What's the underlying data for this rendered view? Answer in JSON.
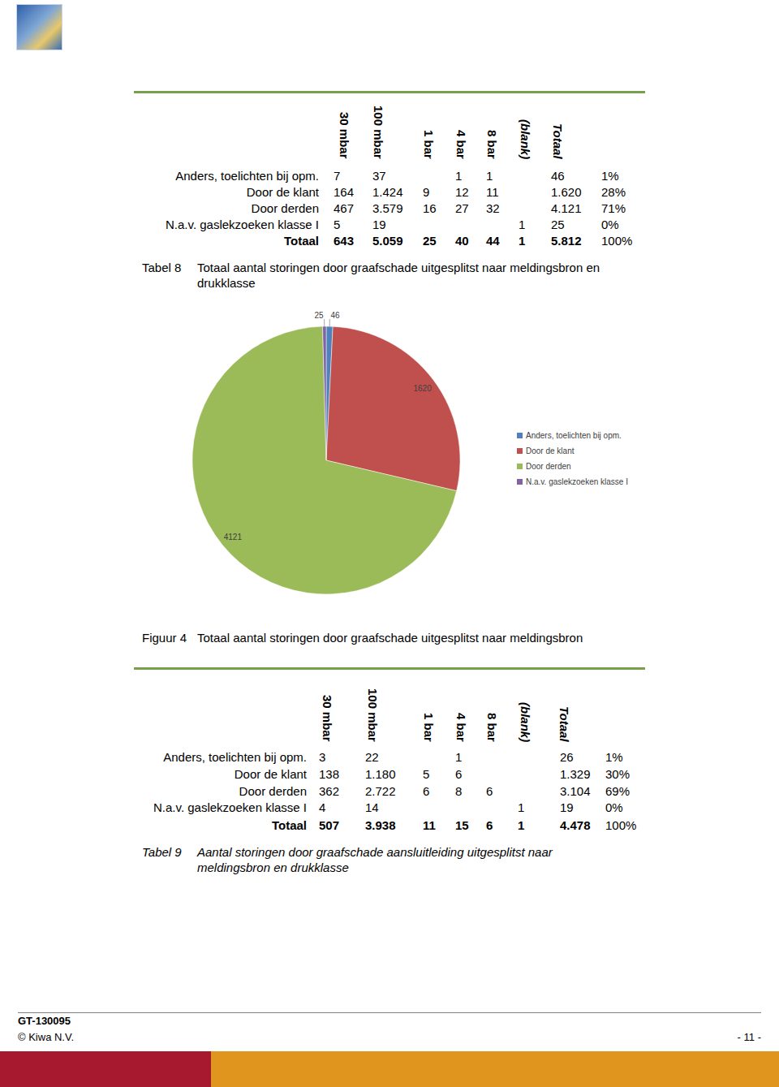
{
  "table1": {
    "columns": [
      "30 mbar",
      "100 mbar",
      "1 bar",
      "4 bar",
      "8 bar",
      "(blank)",
      "Totaal"
    ],
    "rows": [
      {
        "label": "Anders, toelichten bij opm.",
        "cells": [
          "7",
          "37",
          null,
          "1",
          "1",
          null,
          "46",
          "1%"
        ]
      },
      {
        "label": "Door de klant",
        "cells": [
          "164",
          "1.424",
          "9",
          "12",
          "11",
          null,
          "1.620",
          "28%"
        ]
      },
      {
        "label": "Door derden",
        "cells": [
          "467",
          "3.579",
          "16",
          "27",
          "32",
          null,
          "4.121",
          "71%"
        ]
      },
      {
        "label": "N.a.v. gaslekzoeken klasse I",
        "cells": [
          "5",
          "19",
          null,
          null,
          null,
          "1",
          "25",
          "0%"
        ]
      },
      {
        "label": "Totaal",
        "cells": [
          "643",
          "5.059",
          "25",
          "40",
          "44",
          "1",
          "5.812",
          "100%"
        ]
      }
    ],
    "caption_label": "Tabel 8",
    "caption": "Totaal aantal storingen door graafschade uitgesplitst naar meldingsbron en drukklasse"
  },
  "chart_data": {
    "type": "pie",
    "categories": [
      "Anders, toelichten bij opm.",
      "Door de klant",
      "Door derden",
      "N.a.v. gaslekzoeken klasse I"
    ],
    "values": [
      46,
      1620,
      4121,
      25
    ],
    "colors": [
      "#4f81bd",
      "#c0504d",
      "#9bbb59",
      "#8064a2"
    ],
    "data_labels": true,
    "legend": "right"
  },
  "figure": {
    "caption_label": "Figuur 4",
    "caption": "Totaal aantal storingen door graafschade uitgesplitst naar meldingsbron"
  },
  "table2": {
    "columns": [
      "30 mbar",
      "100 mbar",
      "1 bar",
      "4 bar",
      "8 bar",
      "(blank)",
      "Totaal"
    ],
    "rows": [
      {
        "label": "Anders, toelichten bij opm.",
        "cells": [
          "3",
          "22",
          null,
          "1",
          null,
          null,
          "26",
          "1%"
        ]
      },
      {
        "label": "Door de klant",
        "cells": [
          "138",
          "1.180",
          "5",
          "6",
          null,
          null,
          "1.329",
          "30%"
        ]
      },
      {
        "label": "Door derden",
        "cells": [
          "362",
          "2.722",
          "6",
          "8",
          "6",
          null,
          "3.104",
          "69%"
        ]
      },
      {
        "label": "N.a.v. gaslekzoeken klasse I",
        "cells": [
          "4",
          "14",
          null,
          null,
          null,
          "1",
          "19",
          "0%"
        ]
      },
      {
        "label": "Totaal",
        "cells": [
          "507",
          "3.938",
          "11",
          "15",
          "6",
          "1",
          "4.478",
          "100%"
        ]
      }
    ],
    "caption_label": "Tabel 9",
    "caption": "Aantal storingen door graafschade aansluitleiding uitgesplitst naar meldingsbron en drukklasse"
  },
  "footer": {
    "doc_id": "GT-130095",
    "company": "© Kiwa N.V.",
    "page_number": "- 11 -"
  }
}
